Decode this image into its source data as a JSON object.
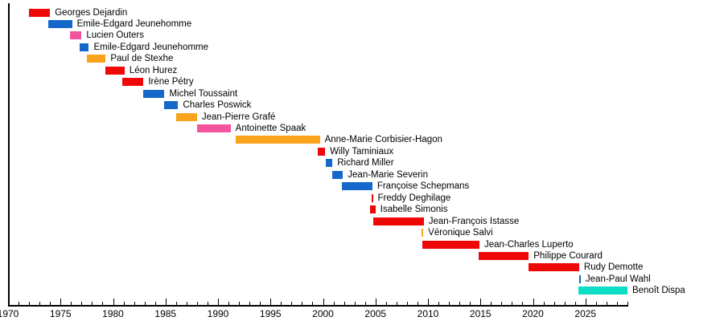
{
  "chart_data": {
    "type": "bar",
    "subtype": "gantt-timeline",
    "description_of_visible_content": "Horizontal timeline of successive office holders, one colored bar per person, label to the right of each bar",
    "x_axis": {
      "start": 1970,
      "end": 2029,
      "minor_tick_interval": 1,
      "major_tick_interval": 5,
      "tick_labels": [
        "1970",
        "1975",
        "1980",
        "1985",
        "1990",
        "1995",
        "2000",
        "2005",
        "2010",
        "2015",
        "2020",
        "2025"
      ]
    },
    "grid": "off",
    "legend": "none",
    "colors": {
      "red": "#EE0808",
      "blue": "#1568C9",
      "pink": "#F4549C",
      "orange": "#FAA41E",
      "turquoise": "#0FDEC6",
      "axis": "#000000",
      "text": "#000000",
      "background": "#FFFFFF"
    },
    "rows": [
      {
        "name": "Georges Dejardin",
        "color": "red",
        "start": 1972.0,
        "end": 1974.0
      },
      {
        "name": "Emile-Edgard Jeunehomme",
        "color": "blue",
        "start": 1973.8,
        "end": 1976.1
      },
      {
        "name": "Lucien Outers",
        "color": "pink",
        "start": 1975.9,
        "end": 1977.0
      },
      {
        "name": "Emile-Edgard Jeunehomme",
        "color": "blue",
        "start": 1976.8,
        "end": 1977.7
      },
      {
        "name": "Paul de Stexhe",
        "color": "orange",
        "start": 1977.5,
        "end": 1979.3
      },
      {
        "name": "Léon Hurez",
        "color": "red",
        "start": 1979.3,
        "end": 1981.1
      },
      {
        "name": "Irène Pétry",
        "color": "red",
        "start": 1980.9,
        "end": 1982.9
      },
      {
        "name": "Michel Toussaint",
        "color": "blue",
        "start": 1982.9,
        "end": 1984.9
      },
      {
        "name": "Charles Poswick",
        "color": "blue",
        "start": 1984.9,
        "end": 1986.2
      },
      {
        "name": "Jean-Pierre Grafé",
        "color": "orange",
        "start": 1986.0,
        "end": 1988.0
      },
      {
        "name": "Antoinette Spaak",
        "color": "pink",
        "start": 1988.0,
        "end": 1991.2
      },
      {
        "name": "Anne-Marie Corbisier-Hagon",
        "color": "orange",
        "start": 1991.7,
        "end": 1999.7
      },
      {
        "name": "Willy Taminiaux",
        "color": "red",
        "start": 1999.5,
        "end": 2000.2
      },
      {
        "name": "Richard Miller",
        "color": "blue",
        "start": 2000.3,
        "end": 2000.9
      },
      {
        "name": "Jean-Marie Severin",
        "color": "blue",
        "start": 2000.9,
        "end": 2001.9
      },
      {
        "name": "Françoise Schepmans",
        "color": "blue",
        "start": 2001.8,
        "end": 2004.7
      },
      {
        "name": "Freddy Deghilage",
        "color": "red",
        "start": 2004.6,
        "end": 2004.75
      },
      {
        "name": "Isabelle Simonis",
        "color": "red",
        "start": 2004.5,
        "end": 2005.0
      },
      {
        "name": "Jean-François Istasse",
        "color": "red",
        "start": 2004.8,
        "end": 2009.6
      },
      {
        "name": "Véronique Salvi",
        "color": "orange",
        "start": 2009.4,
        "end": 2009.55
      },
      {
        "name": "Jean-Charles Luperto",
        "color": "red",
        "start": 2009.5,
        "end": 2014.9
      },
      {
        "name": "Philippe Courard",
        "color": "red",
        "start": 2014.8,
        "end": 2019.6
      },
      {
        "name": "Rudy Demotte",
        "color": "red",
        "start": 2019.6,
        "end": 2024.4
      },
      {
        "name": "Jean-Paul Wahl",
        "color": "blue",
        "start": 2024.4,
        "end": 2024.55
      },
      {
        "name": "Benoît Dispa",
        "color": "turquoise",
        "start": 2024.3,
        "end": 2029.0
      }
    ]
  }
}
